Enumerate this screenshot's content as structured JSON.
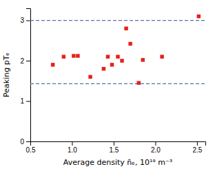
{
  "chart_data": {
    "type": "scatter",
    "x_label": "Average density n̄ₑ, 10¹⁹ m⁻³",
    "y_label": "Peaking pTₑ",
    "xlim": [
      0.5,
      2.6
    ],
    "ylim": [
      0.0,
      3.3
    ],
    "xticks": [
      0.5,
      {
        "value": 1.0,
        "label": "1.0"
      },
      1.5,
      {
        "value": 2.0,
        "label": "2.0"
      },
      2.5
    ],
    "yticks": [
      0,
      1,
      2,
      3
    ],
    "grid": false,
    "series": [
      {
        "type": "scatter",
        "color": "#e8201a",
        "marker": "square",
        "x": [
          0.77,
          0.9,
          1.02,
          1.07,
          1.22,
          1.38,
          1.43,
          1.48,
          1.55,
          1.6,
          1.65,
          1.7,
          1.8,
          1.85,
          2.08,
          2.52
        ],
        "values": [
          1.9,
          2.1,
          2.12,
          2.12,
          1.6,
          1.8,
          2.1,
          1.9,
          2.1,
          2.0,
          2.8,
          2.42,
          1.45,
          2.02,
          2.1,
          3.1
        ]
      },
      {
        "type": "hline",
        "color": "#5b6eae",
        "line_style": "dashed",
        "values": [
          3.0,
          1.43
        ]
      }
    ]
  }
}
